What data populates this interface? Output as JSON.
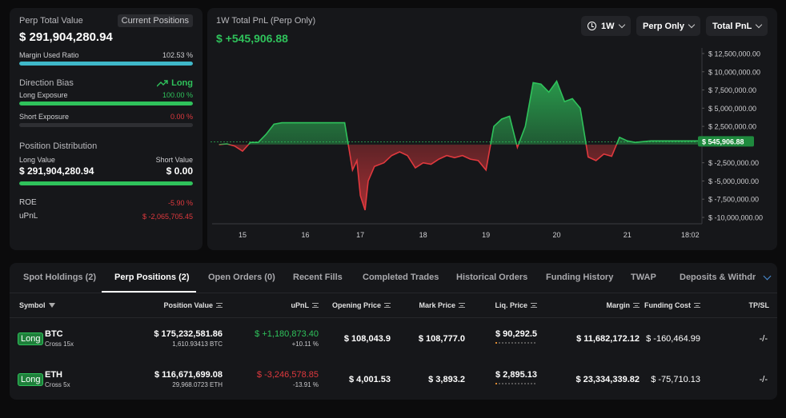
{
  "summary": {
    "perp_total_value_label": "Perp Total Value",
    "current_positions_label": "Current Positions",
    "perp_total_value": "$ 291,904,280.94",
    "margin_used_ratio_label": "Margin Used Ratio",
    "margin_used_ratio": "102.53 %",
    "margin_used_ratio_fill": 1.0,
    "direction_bias_label": "Direction Bias",
    "direction_bias": "Long",
    "long_exposure_label": "Long Exposure",
    "long_exposure": "100.00 %",
    "long_exposure_fill": 1.0,
    "short_exposure_label": "Short Exposure",
    "short_exposure": "0.00 %",
    "short_exposure_fill": 0.0,
    "position_distribution_label": "Position Distribution",
    "long_value_label": "Long Value",
    "short_value_label": "Short Value",
    "long_value": "$ 291,904,280.94",
    "short_value": "$ 0.00",
    "distribution_fill": 1.0,
    "roe_label": "ROE",
    "roe": "-5.90 %",
    "upnl_label": "uPnL",
    "upnl": "$ -2,065,705.45"
  },
  "chart": {
    "title": "1W Total PnL (Perp Only)",
    "pnl": "$ +545,906.88",
    "dropdowns": {
      "period": "1W",
      "scope": "Perp Only",
      "metric": "Total PnL"
    },
    "colors": {
      "positive": "#2fc25b",
      "negative": "#e0393e"
    }
  },
  "chart_data": {
    "type": "area",
    "title": "1W Total PnL (Perp Only)",
    "x_ticks": [
      "15",
      "16",
      "17",
      "18",
      "19",
      "20",
      "21",
      "18:02"
    ],
    "x_tick_positions": [
      0.0,
      1.0,
      1.875,
      2.875,
      3.875,
      5.0,
      6.125,
      7.125
    ],
    "y_ticks": [
      "$ 12,500,000.00",
      "$ 10,000,000.00",
      "$ 7,500,000.00",
      "$ 5,000,000.00",
      "$ 2,500,000.00",
      "$ 0.00",
      "$ -2,500,000.00",
      "$ -5,000,000.00",
      "$ -7,500,000.00",
      "$ -10,000,000.00"
    ],
    "y_tick_values": [
      12500000,
      10000000,
      7500000,
      5000000,
      2500000,
      0,
      -2500000,
      -5000000,
      -7500000,
      -10000000
    ],
    "ylim": [
      -10000000,
      12500000
    ],
    "baseline_value": 545906.88,
    "baseline_label": "$ 545,906.88",
    "series": [
      {
        "x": [
          -0.375,
          -0.25,
          -0.125,
          0.0,
          0.125,
          0.25,
          0.375,
          0.5,
          0.625,
          0.75,
          0.875,
          1.0,
          1.125,
          1.25,
          1.375,
          1.5,
          1.625,
          1.75,
          1.82,
          1.875,
          1.95,
          2.0,
          2.1,
          2.25,
          2.375,
          2.5,
          2.625,
          2.75,
          2.875,
          3.0,
          3.125,
          3.25,
          3.375,
          3.5,
          3.625,
          3.75,
          3.875,
          4.0,
          4.125,
          4.25,
          4.375,
          4.5,
          4.625,
          4.75,
          4.875,
          5.0,
          5.125,
          5.25,
          5.375,
          5.5,
          5.625,
          5.75,
          5.875,
          6.0,
          6.125,
          6.25,
          6.375,
          6.5,
          6.625,
          6.75,
          6.875,
          7.0,
          7.125,
          7.25
        ],
        "y": [
          0,
          100000,
          -200000,
          -900000,
          300000,
          300000,
          1400000,
          2800000,
          3000000,
          3000000,
          3000000,
          3000000,
          3000000,
          3000000,
          3000000,
          3000000,
          3000000,
          -3500000,
          -2200000,
          -7000000,
          -9000000,
          -5000000,
          -3000000,
          -2500000,
          -1500000,
          -1000000,
          -1500000,
          -3200000,
          -2500000,
          -2700000,
          -2000000,
          -1500000,
          -1800000,
          -1500000,
          -2000000,
          -2200000,
          -3500000,
          2500000,
          3500000,
          3900000,
          -400000,
          2500000,
          8500000,
          8300000,
          7200000,
          8700000,
          5900000,
          6300000,
          5000000,
          -1700000,
          -2200000,
          -1300000,
          -1600000,
          1000000,
          500000,
          300000,
          400000,
          500000,
          500000,
          500000,
          500000,
          500000,
          500000,
          500000
        ]
      }
    ],
    "grid": false,
    "legend": "none"
  },
  "tabs": [
    {
      "label": "Spot Holdings (2)",
      "active": false
    },
    {
      "label": "Perp Positions (2)",
      "active": true
    },
    {
      "label": "Open Orders (0)",
      "active": false
    },
    {
      "label": "Recent Fills",
      "active": false
    },
    {
      "label": "Completed Trades",
      "active": false
    },
    {
      "label": "Historical Orders",
      "active": false
    },
    {
      "label": "Funding History",
      "active": false
    },
    {
      "label": "TWAP",
      "active": false
    },
    {
      "label": "Deposits & Withdraw",
      "active": false
    }
  ],
  "table": {
    "headers": {
      "symbol": "Symbol",
      "position_value": "Position Value",
      "upnl": "uPnL",
      "opening_price": "Opening Price",
      "mark_price": "Mark Price",
      "liq_price": "Liq. Price",
      "margin": "Margin",
      "funding_cost": "Funding Cost",
      "tpsl": "TP/SL"
    },
    "rows": [
      {
        "side": "Long",
        "symbol": "BTC",
        "leverage": "Cross 15x",
        "position_value": "$ 175,232,581.86",
        "position_size": "1,610.93413 BTC",
        "upnl": "$ +1,180,873.40",
        "upnl_pct": "+10.11 %",
        "upnl_sign": "positive",
        "opening_price": "$ 108,043.9",
        "mark_price": "$ 108,777.0",
        "liq_price": "$ 90,292.5",
        "liq_risk_level": 0.1,
        "margin": "$ 11,682,172.12",
        "funding_cost": "$ -160,464.99",
        "tpsl": "-/-"
      },
      {
        "side": "Long",
        "symbol": "ETH",
        "leverage": "Cross 5x",
        "position_value": "$ 116,671,699.08",
        "position_size": "29,968.0723 ETH",
        "upnl": "$ -3,246,578.85",
        "upnl_pct": "-13.91 %",
        "upnl_sign": "negative",
        "opening_price": "$ 4,001.53",
        "mark_price": "$ 3,893.2",
        "liq_price": "$ 2,895.13",
        "liq_risk_level": 0.1,
        "margin": "$ 23,334,339.82",
        "funding_cost": "$ -75,710.13",
        "tpsl": "-/-"
      }
    ]
  }
}
